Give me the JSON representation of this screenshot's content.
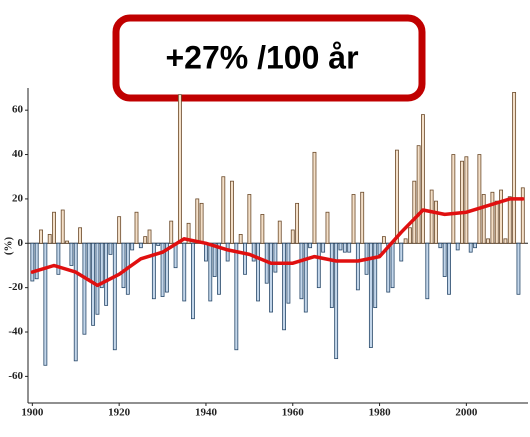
{
  "chart_data": {
    "type": "bar",
    "annotation": "+27% /100 år",
    "y_label": "(%)",
    "x": [
      1900,
      1901,
      1902,
      1903,
      1904,
      1905,
      1906,
      1907,
      1908,
      1909,
      1910,
      1911,
      1912,
      1913,
      1914,
      1915,
      1916,
      1917,
      1918,
      1919,
      1920,
      1921,
      1922,
      1923,
      1924,
      1925,
      1926,
      1927,
      1928,
      1929,
      1930,
      1931,
      1932,
      1933,
      1934,
      1935,
      1936,
      1937,
      1938,
      1939,
      1940,
      1941,
      1942,
      1943,
      1944,
      1945,
      1946,
      1947,
      1948,
      1949,
      1950,
      1951,
      1952,
      1953,
      1954,
      1955,
      1956,
      1957,
      1958,
      1959,
      1960,
      1961,
      1962,
      1963,
      1964,
      1965,
      1966,
      1967,
      1968,
      1969,
      1970,
      1971,
      1972,
      1973,
      1974,
      1975,
      1976,
      1977,
      1978,
      1979,
      1980,
      1981,
      1982,
      1983,
      1984,
      1985,
      1986,
      1987,
      1988,
      1989,
      1990,
      1991,
      1992,
      1993,
      1994,
      1995,
      1996,
      1997,
      1998,
      1999,
      2000,
      2001,
      2002,
      2003,
      2004,
      2005,
      2006,
      2007,
      2008,
      2009,
      2010,
      2011,
      2012,
      2013
    ],
    "values": [
      -17,
      -16,
      6,
      -55,
      4,
      14,
      -14,
      15,
      1,
      -10,
      -53,
      7,
      -41,
      -16,
      -37,
      -32,
      -20,
      -28,
      -5,
      -48,
      12,
      -20,
      -23,
      -3,
      14,
      -2,
      3,
      6,
      -25,
      -1,
      -24,
      -22,
      10,
      -11,
      67,
      -26,
      9,
      -34,
      20,
      18,
      -8,
      -26,
      -15,
      -23,
      30,
      -8,
      28,
      -48,
      4,
      -14,
      22,
      -8,
      -26,
      13,
      -18,
      -31,
      -13,
      10,
      -39,
      -27,
      6,
      18,
      -25,
      -31,
      -2,
      41,
      -20,
      -4,
      14,
      -29,
      -52,
      -3,
      -4,
      -4,
      22,
      -21,
      23,
      -14,
      -47,
      -29,
      -5,
      3,
      -22,
      -20,
      42,
      -8,
      2,
      7,
      28,
      44,
      58,
      -25,
      24,
      19,
      -2,
      -15,
      -23,
      40,
      -3,
      37,
      39,
      -4,
      -2,
      40,
      22,
      2,
      23,
      19,
      24,
      2,
      21,
      68,
      -23,
      25
    ],
    "pos_color": "#f3dfc8",
    "pos_edge": "#6b4a2a",
    "neg_color": "#c3d6ea",
    "neg_edge": "#2a4a6b",
    "trend": {
      "color": "#e01010",
      "x": [
        1900,
        1905,
        1910,
        1915,
        1920,
        1925,
        1930,
        1935,
        1940,
        1945,
        1950,
        1955,
        1960,
        1965,
        1970,
        1975,
        1980,
        1985,
        1990,
        1995,
        2000,
        2005,
        2010,
        2013
      ],
      "values": [
        -13,
        -10,
        -13,
        -19,
        -14,
        -7,
        -4,
        2,
        0,
        -3,
        -5,
        -9,
        -9,
        -6,
        -8,
        -8,
        -6,
        5,
        15,
        13,
        14,
        17,
        20,
        20
      ]
    },
    "xlim": [
      1899,
      2014.2
    ],
    "xticks": [
      1900,
      1920,
      1940,
      1960,
      1980,
      2000
    ],
    "ylim": [
      -72,
      70
    ],
    "yticks": [
      -60,
      -40,
      -20,
      0,
      20,
      40,
      60
    ]
  }
}
